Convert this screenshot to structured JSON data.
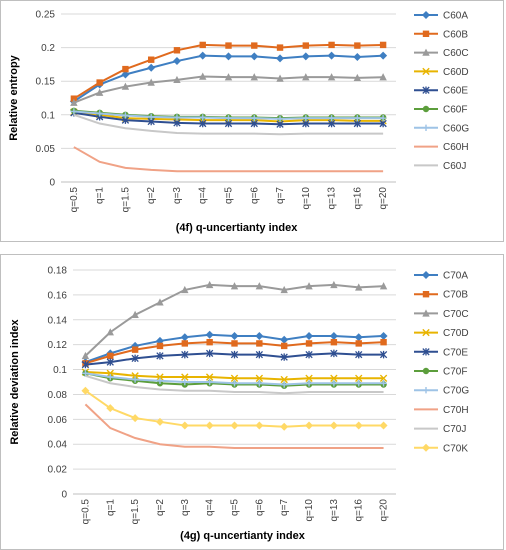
{
  "chart_data": [
    {
      "type": "line",
      "categories": [
        "q=0.5",
        "q=1",
        "q=1.5",
        "q=2",
        "q=3",
        "q=4",
        "q=5",
        "q=6",
        "q=7",
        "q=10",
        "q=13",
        "q=16",
        "q=20"
      ],
      "xlabel": "(4f) q-uncertianty index",
      "ylabel": "Relative entropy",
      "ylim": [
        0,
        0.25
      ],
      "yticks": [
        "0",
        "0.05",
        "0.1",
        "0.15",
        "0.2",
        "0.25"
      ],
      "grid": true,
      "legend": "right",
      "series": [
        {
          "name": "C60A",
          "color": "#3f7fc2",
          "marker": "diamond",
          "values": [
            0.12,
            0.145,
            0.16,
            0.17,
            0.18,
            0.188,
            0.187,
            0.187,
            0.184,
            0.187,
            0.188,
            0.186,
            0.188
          ]
        },
        {
          "name": "C60B",
          "color": "#e06a1e",
          "marker": "square",
          "values": [
            0.124,
            0.148,
            0.168,
            0.182,
            0.196,
            0.204,
            0.203,
            0.203,
            0.2,
            0.203,
            0.204,
            0.203,
            0.204
          ]
        },
        {
          "name": "C60C",
          "color": "#9a9a9a",
          "marker": "triangle",
          "values": [
            0.118,
            0.133,
            0.142,
            0.148,
            0.152,
            0.157,
            0.156,
            0.156,
            0.154,
            0.156,
            0.156,
            0.155,
            0.156
          ]
        },
        {
          "name": "C60D",
          "color": "#e8b400",
          "marker": "x",
          "values": [
            0.104,
            0.1,
            0.095,
            0.094,
            0.093,
            0.092,
            0.092,
            0.092,
            0.09,
            0.092,
            0.092,
            0.091,
            0.091
          ]
        },
        {
          "name": "C60E",
          "color": "#2f4f91",
          "marker": "star",
          "values": [
            0.103,
            0.097,
            0.092,
            0.09,
            0.088,
            0.087,
            0.087,
            0.087,
            0.086,
            0.087,
            0.087,
            0.087,
            0.087
          ]
        },
        {
          "name": "C60F",
          "color": "#5c9e3c",
          "marker": "circle",
          "values": [
            0.106,
            0.103,
            0.1,
            0.098,
            0.097,
            0.097,
            0.096,
            0.096,
            0.095,
            0.096,
            0.096,
            0.096,
            0.096
          ]
        },
        {
          "name": "C60G",
          "color": "#9ec3e6",
          "marker": "plus",
          "values": [
            0.105,
            0.102,
            0.099,
            0.097,
            0.096,
            0.096,
            0.095,
            0.095,
            0.094,
            0.095,
            0.095,
            0.095,
            0.095
          ]
        },
        {
          "name": "C60H",
          "color": "#f0a286",
          "marker": "none",
          "values": [
            0.052,
            0.03,
            0.021,
            0.018,
            0.016,
            0.016,
            0.016,
            0.016,
            0.016,
            0.016,
            0.016,
            0.016,
            0.016
          ]
        },
        {
          "name": "C60J",
          "color": "#c8c8c8",
          "marker": "none",
          "values": [
            0.1,
            0.087,
            0.08,
            0.076,
            0.073,
            0.072,
            0.072,
            0.072,
            0.071,
            0.072,
            0.072,
            0.072,
            0.072
          ]
        }
      ]
    },
    {
      "type": "line",
      "categories": [
        "q=0.5",
        "q=1",
        "q=1.5",
        "q=2",
        "q=3",
        "q=4",
        "q=5",
        "q=6",
        "q=7",
        "q=10",
        "q=13",
        "q=16",
        "q=20"
      ],
      "xlabel": "(4g) q-uncertianty index",
      "ylabel": "Relative deviation index",
      "ylim": [
        0,
        0.18
      ],
      "yticks": [
        "0",
        "0.02",
        "0.04",
        "0.06",
        "0.08",
        "0.1",
        "0.12",
        "0.14",
        "0.16",
        "0.18"
      ],
      "grid": true,
      "legend": "right",
      "series": [
        {
          "name": "C70A",
          "color": "#3f7fc2",
          "marker": "diamond",
          "values": [
            0.106,
            0.113,
            0.119,
            0.123,
            0.126,
            0.128,
            0.127,
            0.127,
            0.124,
            0.127,
            0.127,
            0.126,
            0.127
          ]
        },
        {
          "name": "C70B",
          "color": "#e06a1e",
          "marker": "square",
          "values": [
            0.105,
            0.111,
            0.116,
            0.119,
            0.121,
            0.122,
            0.121,
            0.121,
            0.119,
            0.121,
            0.122,
            0.121,
            0.122
          ]
        },
        {
          "name": "C70C",
          "color": "#9a9a9a",
          "marker": "triangle",
          "values": [
            0.111,
            0.13,
            0.144,
            0.154,
            0.164,
            0.168,
            0.167,
            0.167,
            0.164,
            0.167,
            0.168,
            0.166,
            0.167
          ]
        },
        {
          "name": "C70D",
          "color": "#e8b400",
          "marker": "x",
          "values": [
            0.098,
            0.097,
            0.095,
            0.094,
            0.094,
            0.094,
            0.093,
            0.093,
            0.092,
            0.093,
            0.093,
            0.093,
            0.093
          ]
        },
        {
          "name": "C70E",
          "color": "#2f4f91",
          "marker": "star",
          "values": [
            0.104,
            0.106,
            0.109,
            0.111,
            0.112,
            0.113,
            0.112,
            0.112,
            0.11,
            0.112,
            0.113,
            0.112,
            0.112
          ]
        },
        {
          "name": "C70F",
          "color": "#5c9e3c",
          "marker": "circle",
          "values": [
            0.097,
            0.093,
            0.091,
            0.089,
            0.088,
            0.089,
            0.088,
            0.088,
            0.087,
            0.088,
            0.088,
            0.088,
            0.088
          ]
        },
        {
          "name": "C70G",
          "color": "#9ec3e6",
          "marker": "plus",
          "values": [
            0.097,
            0.094,
            0.092,
            0.091,
            0.09,
            0.09,
            0.089,
            0.089,
            0.088,
            0.089,
            0.089,
            0.089,
            0.089
          ]
        },
        {
          "name": "C70H",
          "color": "#f0a286",
          "marker": "none",
          "values": [
            0.072,
            0.053,
            0.045,
            0.04,
            0.038,
            0.038,
            0.037,
            0.037,
            0.037,
            0.037,
            0.037,
            0.037,
            0.037
          ]
        },
        {
          "name": "C70J",
          "color": "#c8c8c8",
          "marker": "none",
          "values": [
            0.095,
            0.089,
            0.086,
            0.084,
            0.083,
            0.083,
            0.082,
            0.082,
            0.081,
            0.082,
            0.082,
            0.082,
            0.082
          ]
        },
        {
          "name": "C70K",
          "color": "#ffd966",
          "marker": "diamond",
          "values": [
            0.083,
            0.069,
            0.061,
            0.058,
            0.055,
            0.055,
            0.055,
            0.055,
            0.054,
            0.055,
            0.055,
            0.055,
            0.055
          ]
        }
      ]
    }
  ]
}
